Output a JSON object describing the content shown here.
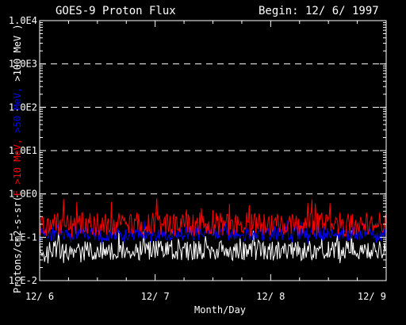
{
  "chart_data": {
    "type": "line",
    "title": "GOES-9 Proton Flux",
    "begin_label": "Begin: 12/ 6/ 1997",
    "xlabel": "Month/Day",
    "ylabel_parts": [
      {
        "text": "Protons/cm2-s-sr(",
        "color": "#ffffff"
      },
      {
        "text": "E >10 MeV, ",
        "color": "#ff0000"
      },
      {
        "text": ">50 MeV, ",
        "color": "#0000ff"
      },
      {
        "text": ">100 MeV )",
        "color": "#ffffff"
      }
    ],
    "y_scale": "log",
    "ylim": [
      0.01,
      10000
    ],
    "yticks": [
      {
        "value": 10000,
        "label": "1.0E4"
      },
      {
        "value": 1000,
        "label": "1.0E3"
      },
      {
        "value": 100,
        "label": "1.0E2"
      },
      {
        "value": 10,
        "label": "1.0E1"
      },
      {
        "value": 1,
        "label": "1.0E0"
      },
      {
        "value": 0.1,
        "label": "1.E-1"
      },
      {
        "value": 0.01,
        "label": "1.E-2"
      }
    ],
    "xlim": [
      0,
      3
    ],
    "xticks": [
      {
        "value": 0,
        "label": "12/ 6"
      },
      {
        "value": 1,
        "label": "12/ 7"
      },
      {
        "value": 2,
        "label": "12/ 8"
      },
      {
        "value": 3,
        "label": "12/ 9"
      }
    ],
    "grid": "dashed horizontal at decades 1E0–1E3",
    "series": [
      {
        "energy": ">10 MeV",
        "color": "#ff0000",
        "typical": 0.2,
        "min": 0.1,
        "max": 0.8
      },
      {
        "energy": ">50 MeV",
        "color": "#0000ff",
        "typical": 0.12,
        "min": 0.07,
        "max": 0.25
      },
      {
        "energy": ">100 MeV",
        "color": "#ffffff",
        "typical": 0.05,
        "min": 0.025,
        "max": 0.15
      }
    ]
  }
}
